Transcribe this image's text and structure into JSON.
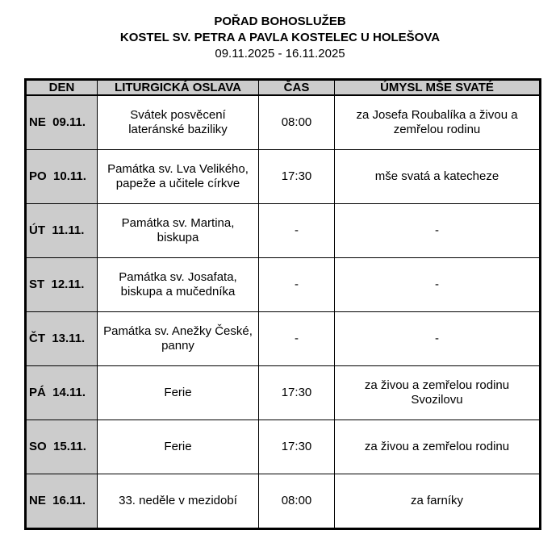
{
  "header": {
    "title": "POŘAD BOHOSLUŽEB",
    "church": "KOSTEL SV. PETRA A PAVLA KOSTELEC U HOLEŠOVA",
    "date_range": "09.11.2025 - 16.11.2025"
  },
  "table": {
    "columns": [
      "DEN",
      "LITURGICKÁ OSLAVA",
      "ČAS",
      "ÚMYSL MŠE SVATÉ"
    ],
    "rows": [
      {
        "day": "NE  09.11.",
        "celebration": "Svátek posvěcení lateránské baziliky",
        "time": "08:00",
        "intention": "za Josefa Roubalíka a živou a zemřelou rodinu"
      },
      {
        "day": "PO  10.11.",
        "celebration": "Památka sv. Lva Velikého, papeže a učitele církve",
        "time": "17:30",
        "intention": "mše svatá a katecheze"
      },
      {
        "day": "ÚT  11.11.",
        "celebration": "Památka sv. Martina, biskupa",
        "time": "-",
        "intention": "-"
      },
      {
        "day": "ST  12.11.",
        "celebration": "Památka sv. Josafata, biskupa a mučedníka",
        "time": "-",
        "intention": "-"
      },
      {
        "day": "ČT  13.11.",
        "celebration": "Památka sv. Anežky České, panny",
        "time": "-",
        "intention": "-"
      },
      {
        "day": "PÁ  14.11.",
        "celebration": "Ferie",
        "time": "17:30",
        "intention": "za živou a zemřelou rodinu Svozilovu"
      },
      {
        "day": "SO  15.11.",
        "celebration": "Ferie",
        "time": "17:30",
        "intention": "za živou a zemřelou rodinu"
      },
      {
        "day": "NE  16.11.",
        "celebration": "33. neděle v mezidobí",
        "time": "08:00",
        "intention": "za farníky"
      }
    ]
  },
  "colors": {
    "header_bg": "#cccccc",
    "day_bg": "#cccccc"
  }
}
